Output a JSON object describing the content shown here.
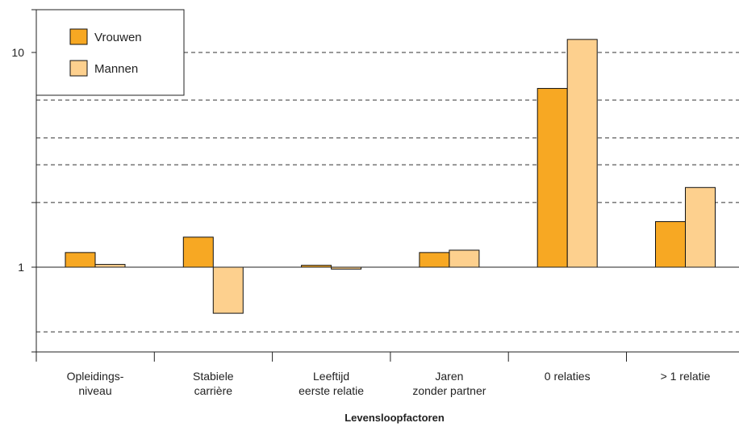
{
  "chart_data": {
    "type": "bar",
    "categories": [
      [
        "Opleidings-",
        "niveau"
      ],
      [
        "Stabiele",
        "carrière"
      ],
      [
        "Leeftijd",
        "eerste relatie"
      ],
      [
        "Jaren",
        "zonder partner"
      ],
      [
        "0 relaties"
      ],
      [
        "> 1 relatie"
      ]
    ],
    "series": [
      {
        "name": "Vrouwen",
        "color": "#f7a823",
        "values": [
          1.17,
          1.38,
          1.02,
          1.17,
          6.8,
          1.63
        ]
      },
      {
        "name": "Mannen",
        "color": "#fdd08e",
        "values": [
          1.03,
          0.61,
          0.98,
          1.2,
          11.5,
          2.35
        ]
      }
    ],
    "xlabel": "Levensloopfactoren",
    "ylabel": "",
    "yscale": "log",
    "ylim": [
      0.4,
      16
    ],
    "yticks": [
      1,
      10
    ],
    "ytick_labels": [
      "1",
      "10"
    ],
    "gridlines": [
      0.5,
      2,
      3,
      4,
      6,
      10
    ],
    "grid": "dashed",
    "baseline": 1,
    "legend": "top-left"
  }
}
